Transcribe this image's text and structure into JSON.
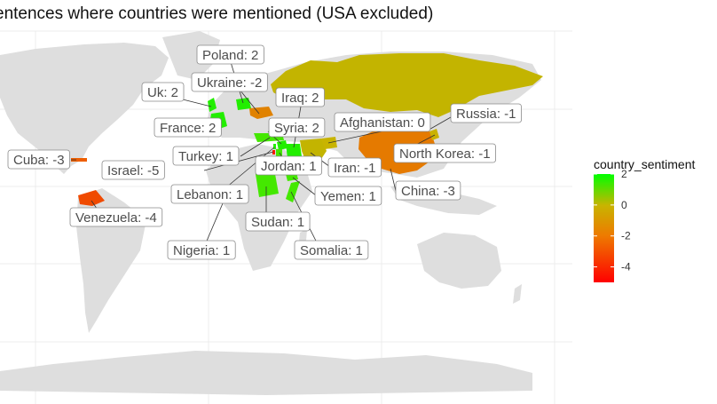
{
  "chart_data": {
    "type": "map",
    "title": "entences where countries were mentioned (USA excluded)",
    "legend": {
      "title": "country_sentiment",
      "placement": "right",
      "ticks": [
        2,
        0,
        -2,
        -4
      ],
      "range": [
        -5,
        2
      ],
      "colors": {
        "low": "#ff0000",
        "mid": "#c8b400",
        "high": "#00ff00"
      }
    },
    "countries": [
      {
        "name": "Poland",
        "value": 2,
        "label": "Poland: 2"
      },
      {
        "name": "Ukraine",
        "value": -2,
        "label": "Ukraine: -2"
      },
      {
        "name": "Iraq",
        "value": 2,
        "label": "Iraq: 2"
      },
      {
        "name": "Uk",
        "value": 2,
        "label": "Uk: 2"
      },
      {
        "name": "France",
        "value": 2,
        "label": "France: 2"
      },
      {
        "name": "Syria",
        "value": 2,
        "label": "Syria: 2"
      },
      {
        "name": "Afghanistan",
        "value": 0,
        "label": "Afghanistan: 0"
      },
      {
        "name": "Russia",
        "value": -1,
        "label": "Russia: -1"
      },
      {
        "name": "Turkey",
        "value": 1,
        "label": "Turkey: 1"
      },
      {
        "name": "North Korea",
        "value": -1,
        "label": "North Korea: -1"
      },
      {
        "name": "Cuba",
        "value": -3,
        "label": "Cuba: -3"
      },
      {
        "name": "Israel",
        "value": -5,
        "label": "Israel: -5"
      },
      {
        "name": "Jordan",
        "value": 1,
        "label": "Jordan: 1"
      },
      {
        "name": "Iran",
        "value": -1,
        "label": "Iran: -1"
      },
      {
        "name": "Lebanon",
        "value": 1,
        "label": "Lebanon: 1"
      },
      {
        "name": "Yemen",
        "value": 1,
        "label": "Yemen: 1"
      },
      {
        "name": "China",
        "value": -3,
        "label": "China: -3"
      },
      {
        "name": "Venezuela",
        "value": -4,
        "label": "Venezuela: -4"
      },
      {
        "name": "Sudan",
        "value": 1,
        "label": "Sudan: 1"
      },
      {
        "name": "Nigeria",
        "value": 1,
        "label": "Nigeria: 1"
      },
      {
        "name": "Somalia",
        "value": 1,
        "label": "Somalia: 1"
      }
    ]
  }
}
